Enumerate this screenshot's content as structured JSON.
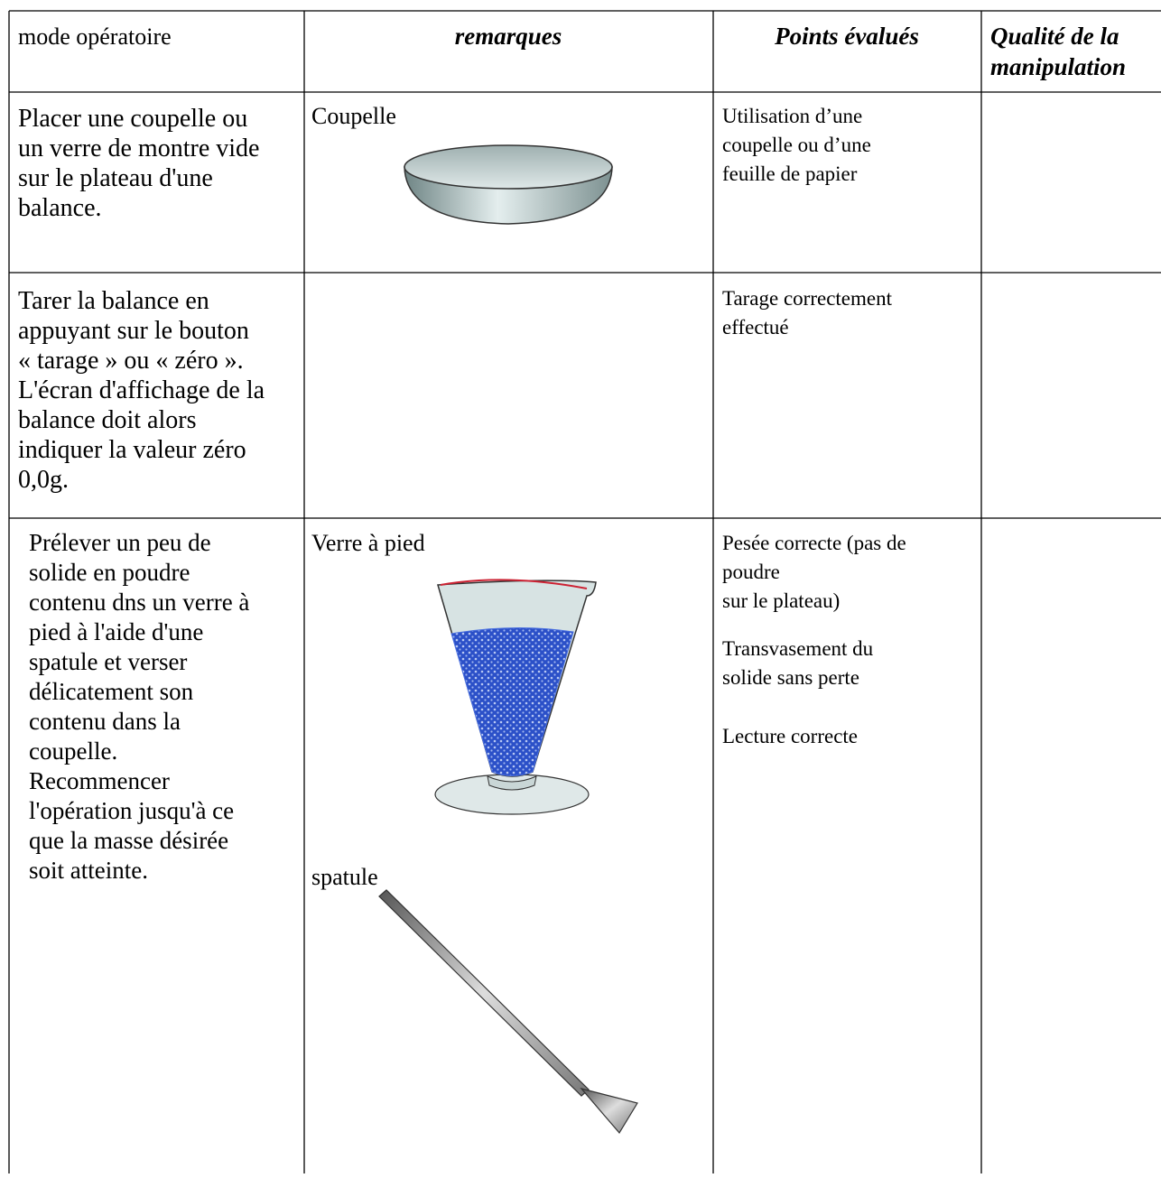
{
  "table": {
    "header": [
      [
        "mode opératoire"
      ],
      [
        "remarques"
      ],
      [
        "Points évalués"
      ],
      [
        "Qualité de la",
        "manipulation"
      ]
    ],
    "rows": [
      [
        [
          [
            "Placer une coupelle ou",
            "un verre de montre vide",
            "sur le plateau d'une",
            "balance."
          ]
        ],
        [
          [
            "Coupelle"
          ]
        ],
        [
          [
            "Utilisation d’une",
            "coupelle ou d’une",
            "feuille de papier"
          ]
        ]
      ],
      [
        [
          [
            "Tarer la balance en",
            "appuyant sur le bouton",
            "« tarage » ou « zéro ».",
            "L'écran d'affichage de la",
            "balance doit alors",
            "indiquer la valeur zéro",
            "0,0g."
          ]
        ],
        [],
        [
          [
            "Tarage correctement",
            "effectué"
          ]
        ]
      ],
      [
        [
          [
            "Prélever un peu de",
            "solide en poudre",
            "contenu dns un verre à",
            "pied à l'aide d'une",
            "spatule et verser",
            "délicatement son",
            "contenu dans la",
            "coupelle.",
            "Recommencer",
            "l'opération jusqu'à ce",
            "que la masse désirée",
            "soit atteinte."
          ]
        ],
        [
          [
            "Verre à pied"
          ],
          [
            "spatule"
          ]
        ],
        [
          [
            "Pesée correcte (pas de",
            "poudre",
            "sur le plateau)"
          ],
          [
            "Transvasement du",
            "solide sans perte"
          ],
          [
            "Lecture correcte"
          ]
        ]
      ]
    ]
  }
}
